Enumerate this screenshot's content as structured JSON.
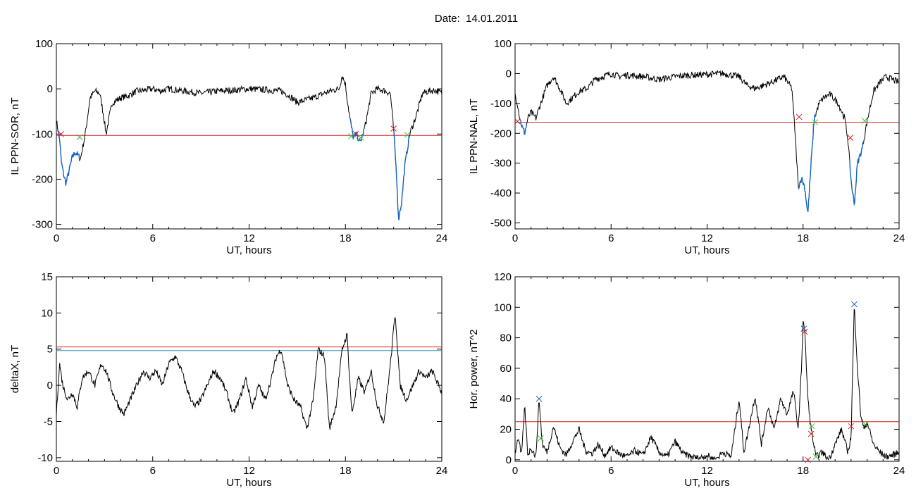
{
  "figure": {
    "title": "Date:  14.01.2011"
  },
  "colors": {
    "data": "#000000",
    "highlight": "#1565c8",
    "threshold_red": "#d62020",
    "threshold_blue": "#2d8fb8",
    "mark_red": "#d62020",
    "mark_green": "#3fbf3f",
    "mark_blue": "#2060d0"
  },
  "chart_data": [
    {
      "type": "line",
      "ylabel": "IL PPN-SOR, nT",
      "xlabel": "UT, hours",
      "xlim": [
        0,
        24
      ],
      "ylim": [
        -310,
        100
      ],
      "xticks": [
        "0",
        "6",
        "12",
        "18",
        "24"
      ],
      "yticks": [
        "100",
        "0",
        "-100",
        "-200",
        "-300"
      ],
      "thresholds": [
        {
          "y": -103,
          "color": "#d62020"
        }
      ],
      "series": [
        {
          "x": [
            0,
            0.1,
            0.2,
            0.3,
            0.45,
            0.6,
            0.8,
            1.0,
            1.2,
            1.5,
            1.8,
            2.1,
            2.4,
            2.7,
            2.9,
            3.1,
            3.3,
            3.5,
            4.0,
            4.5,
            5.0,
            5.5,
            6.0,
            6.5,
            7.0,
            8.0,
            9.0,
            10.0,
            11.0,
            12.0,
            13.0,
            14.0,
            14.5,
            15.0,
            16.0,
            17.0,
            17.6,
            17.8,
            18.0,
            18.1,
            18.3,
            18.5,
            18.7,
            18.9,
            19.1,
            19.3,
            19.6,
            20.0,
            20.5,
            20.8,
            21.0,
            21.2,
            21.3,
            21.5,
            21.7,
            22.0,
            22.4,
            22.8,
            23.2,
            23.6,
            24.0
          ],
          "y": [
            -70,
            -90,
            -110,
            -160,
            -190,
            -210,
            -180,
            -150,
            -140,
            -155,
            -100,
            -20,
            -5,
            -10,
            -50,
            -100,
            -60,
            -30,
            -20,
            -15,
            -5,
            -3,
            0,
            -5,
            0,
            -5,
            -10,
            -5,
            -3,
            0,
            -2,
            -5,
            -15,
            -30,
            -20,
            -5,
            0,
            30,
            10,
            -20,
            -70,
            -110,
            -100,
            -120,
            -100,
            -70,
            -10,
            0,
            -5,
            -10,
            -90,
            -200,
            -290,
            -250,
            -170,
            -100,
            -60,
            -10,
            -5,
            -3,
            -10
          ]
        }
      ],
      "highlight_spans": [
        [
          0.1,
          1.5
        ],
        [
          18.3,
          19.2
        ],
        [
          21.0,
          22.0
        ]
      ],
      "markers": [
        {
          "x": 0.3,
          "y": -100,
          "color": "#d62020"
        },
        {
          "x": 1.45,
          "y": -107,
          "color": "#3fbf3f"
        },
        {
          "x": 18.35,
          "y": -105,
          "color": "#3fbf3f"
        },
        {
          "x": 18.65,
          "y": -100,
          "color": "#d62020"
        },
        {
          "x": 18.95,
          "y": -108,
          "color": "#3fbf3f"
        },
        {
          "x": 21.0,
          "y": -88,
          "color": "#d62020"
        },
        {
          "x": 21.85,
          "y": -102,
          "color": "#3fbf3f"
        }
      ]
    },
    {
      "type": "line",
      "ylabel": "IL PPN-NAL, nT",
      "xlabel": "UT, hours",
      "xlim": [
        0,
        24
      ],
      "ylim": [
        -520,
        100
      ],
      "xticks": [
        "0",
        "6",
        "12",
        "18",
        "24"
      ],
      "yticks": [
        "100",
        "0",
        "-100",
        "-200",
        "-300",
        "-400",
        "-500"
      ],
      "thresholds": [
        {
          "y": -163,
          "color": "#d62020"
        }
      ],
      "series": [
        {
          "x": [
            0,
            0.15,
            0.3,
            0.45,
            0.6,
            0.8,
            1.0,
            1.3,
            1.6,
            2.0,
            2.4,
            2.8,
            3.2,
            3.6,
            4.0,
            4.5,
            5.0,
            5.5,
            6.0,
            6.5,
            7.0,
            8.0,
            9.0,
            10.0,
            11.0,
            12.0,
            13.0,
            14.0,
            14.5,
            15.0,
            16.0,
            16.8,
            17.3,
            17.5,
            17.7,
            17.9,
            18.1,
            18.3,
            18.5,
            18.7,
            19.0,
            19.3,
            19.7,
            20.2,
            20.6,
            20.8,
            21.0,
            21.2,
            21.4,
            21.7,
            22.0,
            22.4,
            22.8,
            23.2,
            23.6,
            24.0
          ],
          "y": [
            -70,
            -100,
            -150,
            -180,
            -200,
            -150,
            -130,
            -150,
            -100,
            -40,
            -10,
            -50,
            -100,
            -80,
            -60,
            -50,
            -20,
            -10,
            0,
            -10,
            -5,
            -10,
            -20,
            -10,
            -5,
            -3,
            0,
            -10,
            -40,
            -50,
            -30,
            -10,
            -50,
            -200,
            -380,
            -350,
            -380,
            -470,
            -300,
            -150,
            -100,
            -80,
            -70,
            -100,
            -150,
            -220,
            -360,
            -440,
            -300,
            -250,
            -160,
            -60,
            -30,
            -10,
            -20,
            -30
          ]
        }
      ],
      "highlight_spans": [
        [
          0.3,
          0.75
        ],
        [
          17.7,
          18.8
        ],
        [
          20.9,
          21.8
        ]
      ],
      "markers": [
        {
          "x": 0.15,
          "y": -160,
          "color": "#d62020"
        },
        {
          "x": 17.75,
          "y": -145,
          "color": "#d62020"
        },
        {
          "x": 18.75,
          "y": -163,
          "color": "#3fbf3f"
        },
        {
          "x": 20.95,
          "y": -215,
          "color": "#d62020"
        },
        {
          "x": 21.85,
          "y": -158,
          "color": "#3fbf3f"
        }
      ]
    },
    {
      "type": "line",
      "ylabel": "deltaX, nT",
      "xlabel": "UT, hours",
      "xlim": [
        0,
        24
      ],
      "ylim": [
        -10.5,
        15
      ],
      "xticks": [
        "0",
        "6",
        "12",
        "18",
        "24"
      ],
      "yticks": [
        "15",
        "10",
        "5",
        "0",
        "-5",
        "-10"
      ],
      "thresholds": [
        {
          "y": 5.3,
          "color": "#d62020"
        },
        {
          "y": 4.8,
          "color": "#2d8fb8"
        }
      ],
      "series": [
        {
          "x": [
            0,
            0.2,
            0.4,
            0.7,
            1.0,
            1.3,
            1.6,
            2.0,
            2.4,
            2.8,
            3.1,
            3.5,
            3.9,
            4.2,
            4.6,
            5.0,
            5.4,
            5.8,
            6.2,
            6.6,
            7.0,
            7.4,
            7.8,
            8.2,
            8.6,
            9.0,
            9.4,
            9.8,
            10.2,
            10.6,
            11.0,
            11.4,
            11.8,
            12.2,
            12.6,
            13.0,
            13.4,
            13.7,
            14.0,
            14.4,
            14.8,
            15.2,
            15.6,
            16.0,
            16.3,
            16.7,
            17.0,
            17.4,
            17.8,
            18.1,
            18.4,
            18.8,
            19.2,
            19.6,
            20.0,
            20.4,
            20.8,
            21.1,
            21.4,
            21.8,
            22.2,
            22.6,
            23.0,
            23.4,
            23.8,
            24.0
          ],
          "y": [
            -4,
            3,
            0,
            -2,
            -1,
            -3,
            1,
            2,
            0,
            3,
            2,
            -1,
            -3,
            -4,
            -2,
            0,
            2,
            1,
            2,
            0,
            3,
            4,
            2,
            -1,
            -3,
            -2,
            0,
            2,
            1,
            -1,
            -4,
            -2,
            1,
            -3,
            0,
            -2,
            1,
            4,
            5,
            0,
            -2,
            -3,
            -6,
            -2,
            5,
            4,
            -6,
            -3,
            5,
            7,
            -4,
            1,
            -1,
            2,
            -3,
            -5,
            3,
            10,
            0,
            -2,
            0,
            2,
            1,
            2,
            0,
            -1
          ]
        }
      ],
      "highlight_spans": [],
      "markers": []
    },
    {
      "type": "line",
      "ylabel": "Hor. power, nT^2",
      "xlabel": "UT, hours",
      "xlim": [
        0,
        24
      ],
      "ylim": [
        -1,
        120
      ],
      "xticks": [
        "0",
        "6",
        "12",
        "18",
        "24"
      ],
      "yticks": [
        "120",
        "100",
        "80",
        "60",
        "40",
        "20",
        "0"
      ],
      "thresholds": [
        {
          "y": 25,
          "color": "#d62020"
        }
      ],
      "series": [
        {
          "x": [
            0,
            0.2,
            0.4,
            0.6,
            0.8,
            1.0,
            1.3,
            1.5,
            1.7,
            2.0,
            2.4,
            2.8,
            3.2,
            3.6,
            4.0,
            4.4,
            4.8,
            5.2,
            5.6,
            6.0,
            6.5,
            7.0,
            7.5,
            8.0,
            8.5,
            9.0,
            9.5,
            10.0,
            10.5,
            11.0,
            11.5,
            12.0,
            12.5,
            13.0,
            13.5,
            14.0,
            14.3,
            14.6,
            15.0,
            15.4,
            15.8,
            16.2,
            16.6,
            17.0,
            17.4,
            17.7,
            17.9,
            18.0,
            18.1,
            18.3,
            18.5,
            18.8,
            19.2,
            19.6,
            20.0,
            20.4,
            20.8,
            21.0,
            21.2,
            21.4,
            21.6,
            21.8,
            22.0,
            22.4,
            22.8,
            23.2,
            23.6,
            24.0
          ],
          "y": [
            5,
            15,
            2,
            35,
            3,
            8,
            2,
            40,
            10,
            5,
            22,
            8,
            3,
            12,
            20,
            6,
            4,
            10,
            3,
            8,
            4,
            2,
            6,
            3,
            15,
            5,
            2,
            12,
            4,
            2,
            1,
            3,
            0,
            5,
            2,
            40,
            5,
            20,
            42,
            10,
            35,
            20,
            40,
            30,
            45,
            20,
            60,
            92,
            85,
            40,
            20,
            2,
            5,
            0,
            10,
            20,
            5,
            15,
            102,
            60,
            30,
            20,
            25,
            10,
            5,
            2,
            3,
            5
          ]
        }
      ],
      "highlight_spans": [],
      "markers": [
        {
          "x": 1.5,
          "y": 40,
          "color": "#2060d0"
        },
        {
          "x": 1.6,
          "y": 14,
          "color": "#3fbf3f"
        },
        {
          "x": 18.05,
          "y": 86,
          "color": "#2060d0"
        },
        {
          "x": 18.1,
          "y": 84,
          "color": "#d62020"
        },
        {
          "x": 18.55,
          "y": 22,
          "color": "#3fbf3f"
        },
        {
          "x": 18.5,
          "y": 17,
          "color": "#d62020"
        },
        {
          "x": 18.3,
          "y": 0,
          "color": "#d62020"
        },
        {
          "x": 18.8,
          "y": 2,
          "color": "#3fbf3f"
        },
        {
          "x": 21.2,
          "y": 102,
          "color": "#2060d0"
        },
        {
          "x": 21.0,
          "y": 22,
          "color": "#d62020"
        },
        {
          "x": 21.9,
          "y": 23,
          "color": "#3fbf3f"
        }
      ]
    }
  ]
}
